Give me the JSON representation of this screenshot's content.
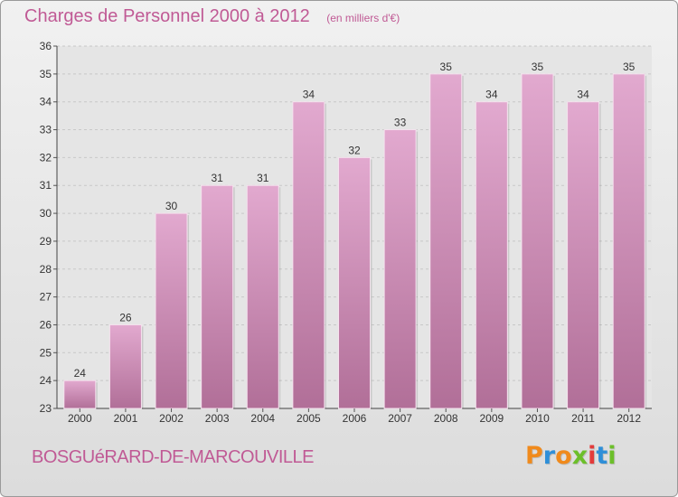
{
  "header": {
    "title": "Charges de Personnel 2000 à 2012",
    "unit": "(en milliers d'€)"
  },
  "footer": {
    "commune": "BOSGUéRARD-DE-MARCOUVILLE",
    "brand": "Proxiti"
  },
  "colors": {
    "title": "#c05a95",
    "bar_top": "#e2a9cf",
    "bar_bottom": "#b16f98",
    "grid": "#c8c8c8",
    "plot_bg": "#e5e5e5",
    "brand_letters": [
      "#f08a1c",
      "#2f8fd8",
      "#f08a1c",
      "#6cbf2a",
      "#e33b3b",
      "#2f8fd8",
      "#6cbf2a"
    ]
  },
  "chart_data": {
    "type": "bar",
    "categories": [
      "2000",
      "2001",
      "2002",
      "2003",
      "2004",
      "2005",
      "2006",
      "2007",
      "2008",
      "2009",
      "2010",
      "2011",
      "2012"
    ],
    "values": [
      24,
      26,
      30,
      31,
      31,
      34,
      32,
      33,
      35,
      34,
      35,
      34,
      35
    ],
    "data_labels": [
      "24",
      "26",
      "30",
      "31",
      "31",
      "34",
      "32",
      "33",
      "35",
      "34",
      "35",
      "34",
      "35"
    ],
    "yticks": [
      "23",
      "24",
      "25",
      "26",
      "27",
      "28",
      "29",
      "30",
      "31",
      "32",
      "33",
      "34",
      "35",
      "36"
    ],
    "ylim": [
      23,
      36
    ],
    "grid": true,
    "title": "Charges de Personnel 2000 à 2012",
    "subtitle": "(en milliers d'€)",
    "xlabel": "",
    "ylabel": ""
  }
}
